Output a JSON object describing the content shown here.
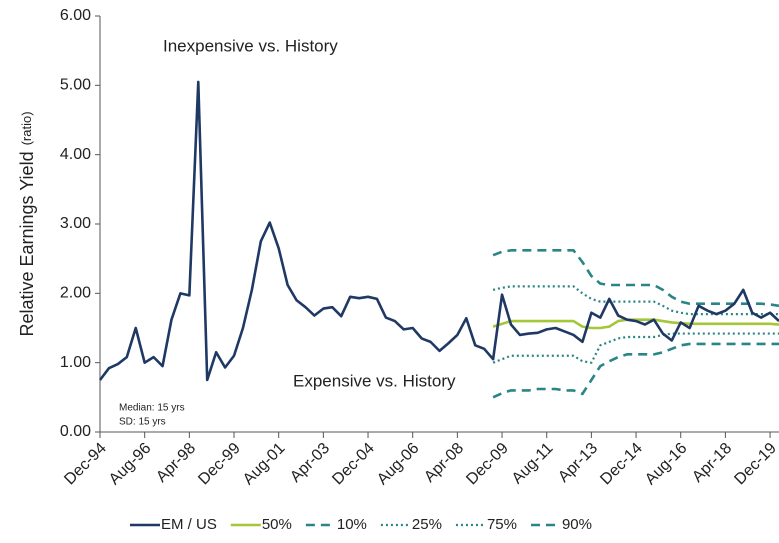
{
  "chart_data": {
    "type": "line",
    "ylabel": "Relative Earnings Yield",
    "ylabel_unit": "(ratio)",
    "annotations": [
      "Inexpensive vs. History",
      "Expensive vs. History",
      "Median: 15 yrs",
      "SD: 15 yrs"
    ],
    "categories": [
      "Dec-94",
      null,
      null,
      null,
      null,
      "Aug-96",
      null,
      null,
      null,
      null,
      "Apr-98",
      null,
      null,
      null,
      null,
      "Dec-99",
      null,
      null,
      null,
      null,
      "Aug-01",
      null,
      null,
      null,
      null,
      "Apr-03",
      null,
      null,
      null,
      null,
      "Dec-04",
      null,
      null,
      null,
      null,
      "Aug-06",
      null,
      null,
      null,
      null,
      "Apr-08",
      null,
      null,
      null,
      null,
      "Dec-09",
      null,
      null,
      null,
      null,
      "Aug-11",
      null,
      null,
      null,
      null,
      "Apr-13",
      null,
      null,
      null,
      null,
      "Dec-14",
      null,
      null,
      null,
      null,
      "Aug-16",
      null,
      null,
      null,
      null,
      "Apr-18",
      null,
      null,
      null,
      null,
      "Dec-19",
      null
    ],
    "ylim": [
      0,
      6
    ],
    "yticks": [
      {
        "value": 0,
        "label": "0.00"
      },
      {
        "value": 1,
        "label": "1.00"
      },
      {
        "value": 2,
        "label": "2.00"
      },
      {
        "value": 3,
        "label": "3.00"
      },
      {
        "value": 4,
        "label": "4.00"
      },
      {
        "value": 5,
        "label": "5.00"
      },
      {
        "value": 6,
        "label": "6.00"
      }
    ],
    "grid": false,
    "legend": "bottom",
    "series": [
      {
        "name": "EM / US",
        "color": "#1f3864",
        "style": "solid",
        "values": [
          0.75,
          0.92,
          0.98,
          1.08,
          1.5,
          1.0,
          1.08,
          0.95,
          1.62,
          2.0,
          1.97,
          5.05,
          0.75,
          1.15,
          0.93,
          1.1,
          1.5,
          2.05,
          2.75,
          3.02,
          2.65,
          2.12,
          1.9,
          1.8,
          1.68,
          1.78,
          1.8,
          1.67,
          1.95,
          1.93,
          1.95,
          1.92,
          1.65,
          1.6,
          1.48,
          1.5,
          1.35,
          1.3,
          1.17,
          1.28,
          1.4,
          1.64,
          1.25,
          1.2,
          1.05,
          1.98,
          1.55,
          1.4,
          1.42,
          1.43,
          1.48,
          1.5,
          1.45,
          1.4,
          1.3,
          1.72,
          1.65,
          1.92,
          1.68,
          1.62,
          1.6,
          1.55,
          1.62,
          1.42,
          1.32,
          1.58,
          1.5,
          1.82,
          1.75,
          1.7,
          1.75,
          1.85,
          2.05,
          1.72,
          1.65,
          1.72,
          1.6
        ]
      },
      {
        "name": "50%",
        "color": "#a4c639",
        "style": "solid",
        "values": [
          null,
          null,
          null,
          null,
          null,
          null,
          null,
          null,
          null,
          null,
          null,
          null,
          null,
          null,
          null,
          null,
          null,
          null,
          null,
          null,
          null,
          null,
          null,
          null,
          null,
          null,
          null,
          null,
          null,
          null,
          null,
          null,
          null,
          null,
          null,
          null,
          null,
          null,
          null,
          null,
          null,
          null,
          null,
          null,
          1.52,
          1.56,
          1.6,
          1.6,
          1.6,
          1.6,
          1.6,
          1.6,
          1.6,
          1.6,
          1.52,
          1.5,
          1.5,
          1.52,
          1.6,
          1.62,
          1.62,
          1.62,
          1.62,
          1.6,
          1.58,
          1.57,
          1.56,
          1.56,
          1.56,
          1.56,
          1.56,
          1.56,
          1.56,
          1.56,
          1.56,
          1.56,
          1.55
        ]
      },
      {
        "name": "10%",
        "color": "#2a8585",
        "style": "dashed",
        "values": [
          null,
          null,
          null,
          null,
          null,
          null,
          null,
          null,
          null,
          null,
          null,
          null,
          null,
          null,
          null,
          null,
          null,
          null,
          null,
          null,
          null,
          null,
          null,
          null,
          null,
          null,
          null,
          null,
          null,
          null,
          null,
          null,
          null,
          null,
          null,
          null,
          null,
          null,
          null,
          null,
          null,
          null,
          null,
          null,
          0.5,
          0.56,
          0.6,
          0.6,
          0.6,
          0.62,
          0.62,
          0.62,
          0.6,
          0.6,
          0.55,
          0.75,
          0.95,
          1.02,
          1.08,
          1.12,
          1.12,
          1.12,
          1.12,
          1.15,
          1.2,
          1.25,
          1.27,
          1.27,
          1.27,
          1.27,
          1.27,
          1.27,
          1.27,
          1.27,
          1.27,
          1.27,
          1.27
        ]
      },
      {
        "name": "25%",
        "color": "#2a8585",
        "style": "dotted",
        "values": [
          null,
          null,
          null,
          null,
          null,
          null,
          null,
          null,
          null,
          null,
          null,
          null,
          null,
          null,
          null,
          null,
          null,
          null,
          null,
          null,
          null,
          null,
          null,
          null,
          null,
          null,
          null,
          null,
          null,
          null,
          null,
          null,
          null,
          null,
          null,
          null,
          null,
          null,
          null,
          null,
          null,
          null,
          null,
          null,
          1.0,
          1.05,
          1.1,
          1.1,
          1.1,
          1.1,
          1.1,
          1.1,
          1.1,
          1.1,
          1.02,
          1.0,
          1.25,
          1.3,
          1.35,
          1.37,
          1.37,
          1.37,
          1.37,
          1.4,
          1.42,
          1.42,
          1.42,
          1.42,
          1.42,
          1.42,
          1.42,
          1.42,
          1.42,
          1.42,
          1.42,
          1.42,
          1.42
        ]
      },
      {
        "name": "75%",
        "color": "#2a8585",
        "style": "dotted",
        "values": [
          null,
          null,
          null,
          null,
          null,
          null,
          null,
          null,
          null,
          null,
          null,
          null,
          null,
          null,
          null,
          null,
          null,
          null,
          null,
          null,
          null,
          null,
          null,
          null,
          null,
          null,
          null,
          null,
          null,
          null,
          null,
          null,
          null,
          null,
          null,
          null,
          null,
          null,
          null,
          null,
          null,
          null,
          null,
          null,
          2.05,
          2.08,
          2.1,
          2.1,
          2.1,
          2.1,
          2.1,
          2.1,
          2.1,
          2.1,
          2.0,
          1.92,
          1.88,
          1.88,
          1.88,
          1.88,
          1.88,
          1.88,
          1.88,
          1.82,
          1.75,
          1.72,
          1.7,
          1.7,
          1.7,
          1.7,
          1.7,
          1.7,
          1.7,
          1.7,
          1.7,
          1.7,
          1.7
        ]
      },
      {
        "name": "90%",
        "color": "#2a8585",
        "style": "dashed",
        "values": [
          null,
          null,
          null,
          null,
          null,
          null,
          null,
          null,
          null,
          null,
          null,
          null,
          null,
          null,
          null,
          null,
          null,
          null,
          null,
          null,
          null,
          null,
          null,
          null,
          null,
          null,
          null,
          null,
          null,
          null,
          null,
          null,
          null,
          null,
          null,
          null,
          null,
          null,
          null,
          null,
          null,
          null,
          null,
          null,
          2.55,
          2.6,
          2.62,
          2.62,
          2.62,
          2.62,
          2.62,
          2.62,
          2.62,
          2.62,
          2.45,
          2.25,
          2.14,
          2.12,
          2.12,
          2.12,
          2.12,
          2.12,
          2.12,
          2.05,
          1.95,
          1.88,
          1.85,
          1.85,
          1.85,
          1.85,
          1.85,
          1.85,
          1.85,
          1.85,
          1.85,
          1.84,
          1.82
        ]
      }
    ]
  }
}
